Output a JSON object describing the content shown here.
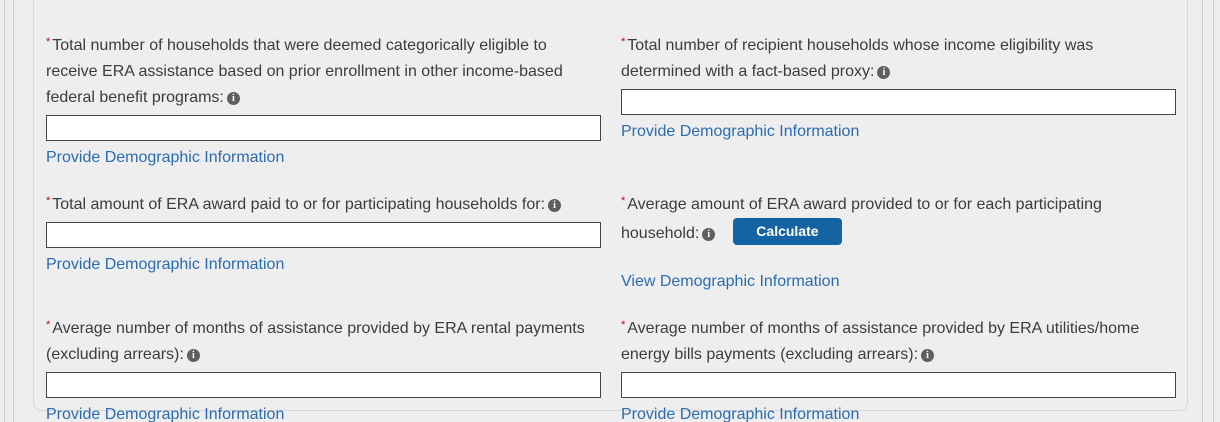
{
  "ui": {
    "required_marker": "*",
    "info_glyph": "i",
    "background": "#eeeeef",
    "panel_border": "#d6d6d6",
    "link_color": "#2b6cb0",
    "button_color": "#1464a4",
    "required_color": "#cc0000",
    "input_border": "#454545"
  },
  "fields": [
    {
      "label": "Total number of households that were deemed categorically eligible to receive ERA assistance based on prior enrollment in other income-based federal benefit programs:",
      "value": "",
      "link": "Provide Demographic Information"
    },
    {
      "label": "Total number of recipient households whose income eligibility was determined with a fact-based proxy:",
      "value": "",
      "link": "Provide Demographic Information"
    },
    {
      "label": "Total amount of ERA award paid to or for participating households for:",
      "value": "",
      "link": "Provide Demographic Information"
    },
    {
      "label": "Average amount of ERA award provided to or for each participating household:",
      "button_label": "Calculate",
      "link": "View Demographic Information"
    },
    {
      "label": "Average number of months of assistance provided by ERA rental payments (excluding arrears):",
      "value": "",
      "link": "Provide Demographic Information"
    },
    {
      "label": "Average number of months of assistance provided by ERA utilities/home energy bills payments (excluding arrears):",
      "value": "",
      "link": "Provide Demographic Information"
    }
  ]
}
